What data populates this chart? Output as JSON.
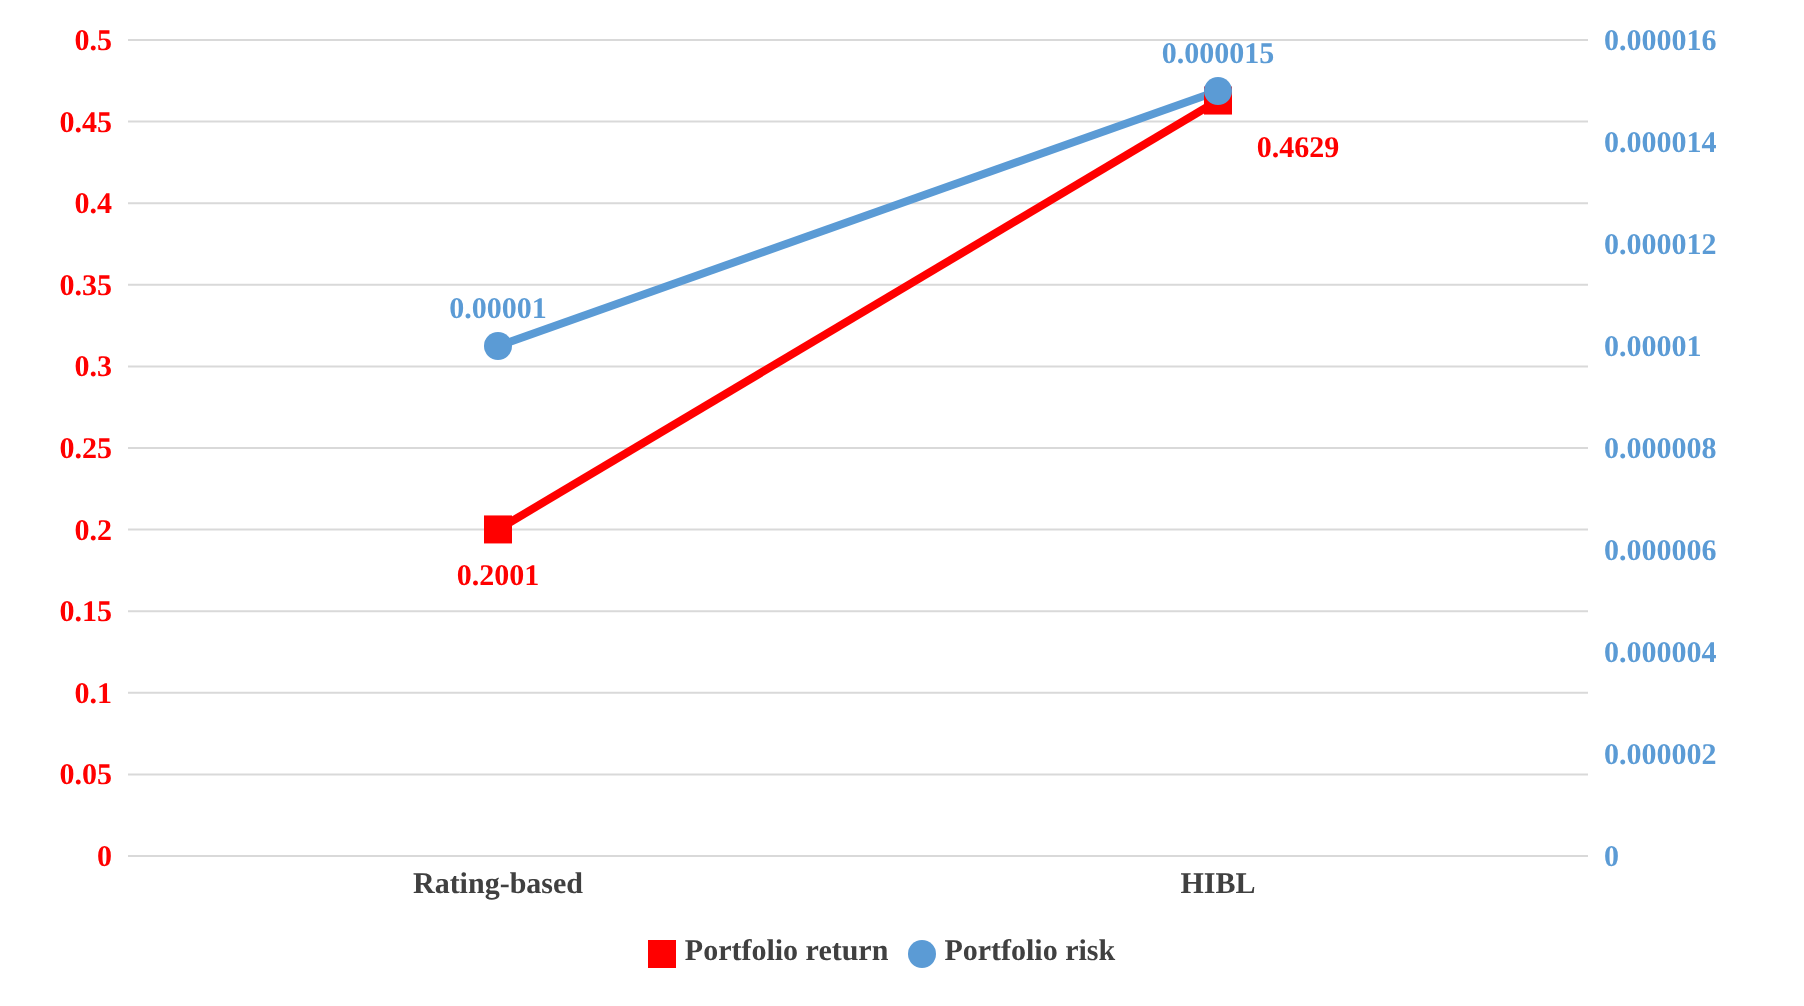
{
  "chart_data": {
    "type": "line",
    "categories": [
      "Rating-based",
      "HIBL"
    ],
    "series": [
      {
        "name": "Portfolio return",
        "color": "#ff0000",
        "values": [
          0.2001,
          0.4629
        ],
        "marker": "square",
        "value_labels": [
          "0.2001",
          "0.4629"
        ]
      },
      {
        "name": "Portfolio risk",
        "color": "#5b9bd5",
        "values": [
          1e-05,
          1.5e-05
        ],
        "axis": "y2",
        "marker": "circle",
        "value_labels": [
          "0.00001",
          "0.000015"
        ]
      }
    ],
    "ylim": [
      0,
      0.5
    ],
    "yticks": [
      0,
      0.05,
      0.1,
      0.15,
      0.2,
      0.25,
      0.3,
      0.35,
      0.4,
      0.45,
      0.5
    ],
    "y2lim": [
      0,
      1.6e-05
    ],
    "y2ticks": [
      {
        "value": 0,
        "label": "0"
      },
      {
        "value": 2e-06,
        "label": "0.000002"
      },
      {
        "value": 4e-06,
        "label": "0.000004"
      },
      {
        "value": 6e-06,
        "label": "0.000006"
      },
      {
        "value": 8e-06,
        "label": "0.000008"
      },
      {
        "value": 1e-05,
        "label": "0.00001"
      },
      {
        "value": 1.2e-05,
        "label": "0.000012"
      },
      {
        "value": 1.4e-05,
        "label": "0.000014"
      },
      {
        "value": 1.6e-05,
        "label": "0.000016"
      }
    ],
    "grid": "y",
    "legend": "bottom"
  }
}
